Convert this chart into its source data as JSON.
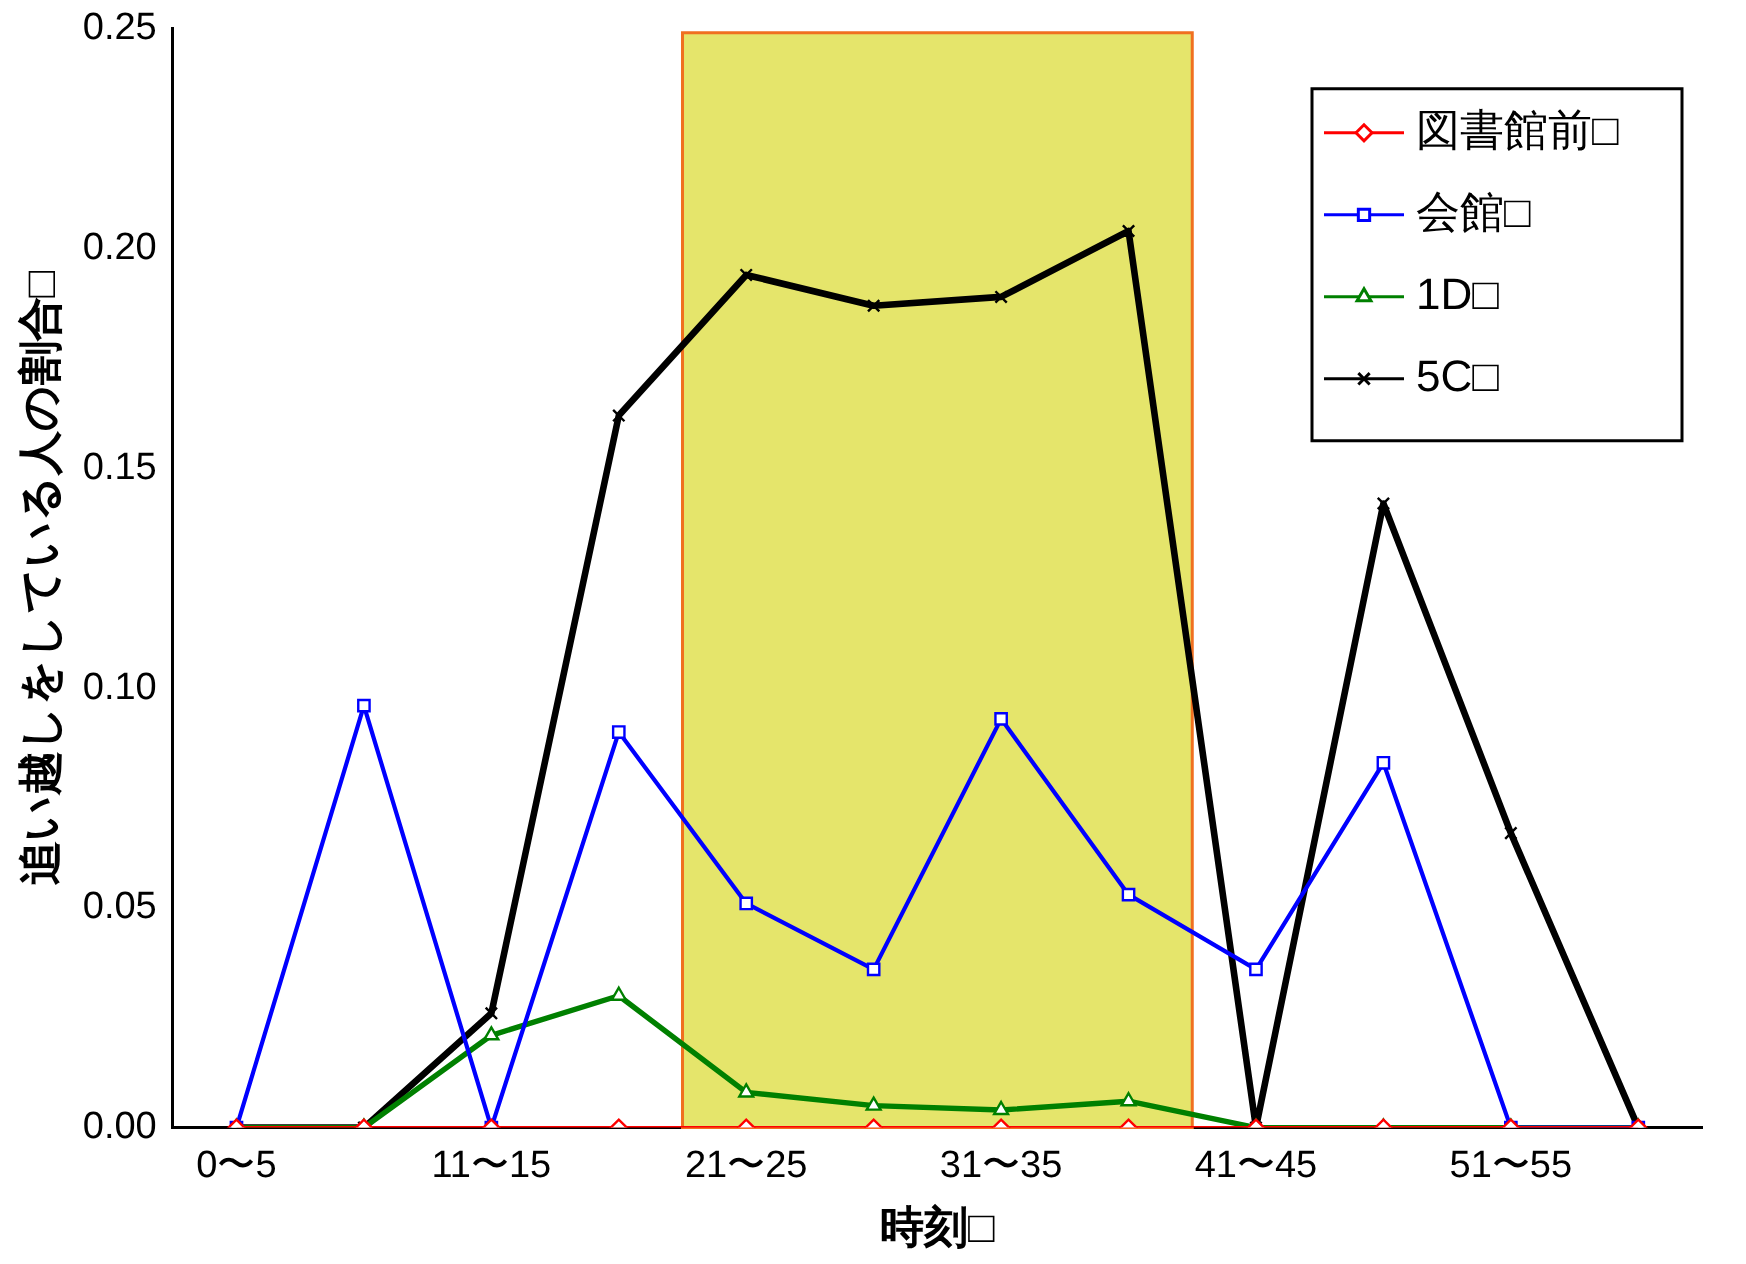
{
  "chart_data": {
    "type": "line",
    "xlabel": "時刻□",
    "ylabel": "追い越しをしている人の割合□",
    "categories": [
      "0〜5",
      null,
      "11〜15",
      null,
      "21〜25",
      null,
      "31〜35",
      null,
      "41〜45",
      null,
      "51〜55",
      null
    ],
    "ylim": [
      0,
      0.25
    ],
    "yticks": [
      {
        "value": 0,
        "label": "0.00"
      },
      {
        "value": 0.05,
        "label": "0.05"
      },
      {
        "value": 0.1,
        "label": "0.10"
      },
      {
        "value": 0.15,
        "label": "0.15"
      },
      {
        "value": 0.2,
        "label": "0.20"
      },
      {
        "value": 0.25,
        "label": "0.25"
      }
    ],
    "grid": false,
    "legend": "top right",
    "series": [
      {
        "name": "図書館前□",
        "color": "#ff0000",
        "marker": "diamond",
        "values": [
          0,
          0,
          0,
          0,
          0,
          0,
          0,
          0,
          0,
          0,
          0,
          0
        ]
      },
      {
        "name": "会館□",
        "color": "#0000ff",
        "marker": "square",
        "values": [
          0,
          0.096,
          0,
          0.09,
          0.051,
          0.036,
          0.093,
          0.053,
          0.036,
          0.083,
          0,
          0
        ]
      },
      {
        "name": "1D□",
        "color": "#008000",
        "marker": "triangle",
        "values": [
          0,
          0,
          0.021,
          0.03,
          0.008,
          0.005,
          0.004,
          0.006,
          0,
          0,
          0,
          0
        ]
      },
      {
        "name": "5C□",
        "color": "#000000",
        "marker": "cross",
        "values": [
          0,
          0,
          0.026,
          0.162,
          0.194,
          0.187,
          0.189,
          0.204,
          0,
          0.142,
          0.067,
          0
        ]
      }
    ]
  }
}
